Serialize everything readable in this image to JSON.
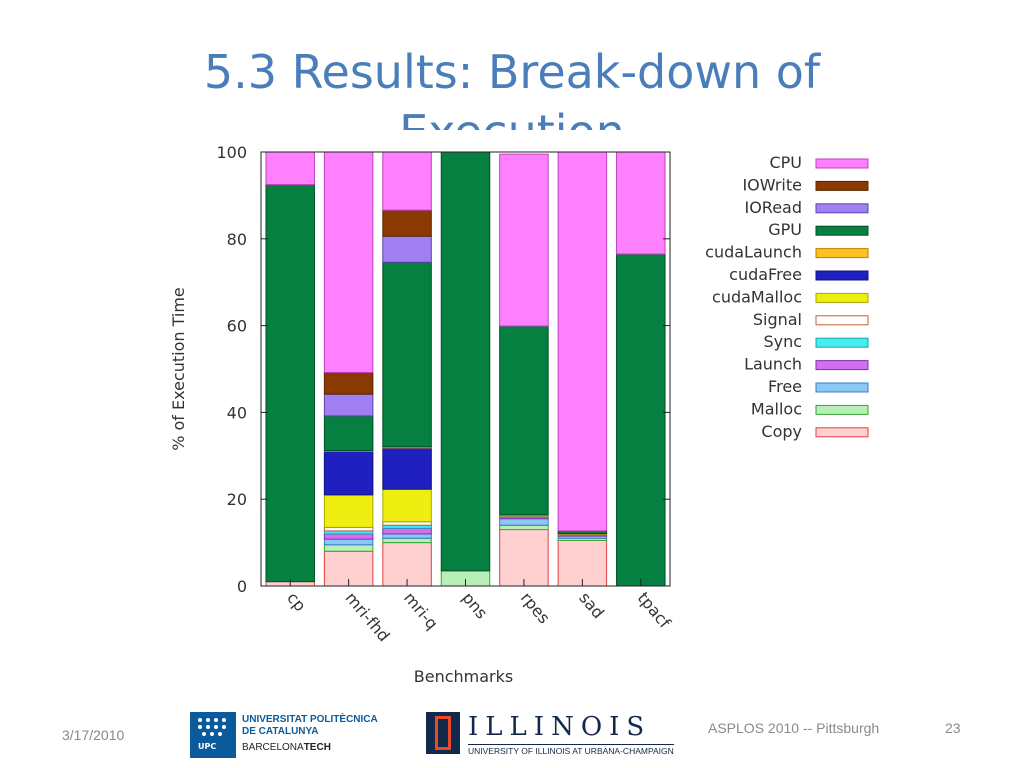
{
  "slide": {
    "title_line1": "5.3 Results: Break-down of",
    "title_line2": "Execution",
    "date": "3/17/2010",
    "conference": "ASPLOS 2010 -- Pittsburgh",
    "page_number": "23"
  },
  "logos": {
    "upc_line1": "UNIVERSITAT POLITÈCNICA",
    "upc_line2": "DE CATALUNYA",
    "upc_line3_a": "BARCELONA",
    "upc_line3_b": "TECH",
    "upc_mark": "UPC",
    "illinois_word": "ILLINOIS",
    "illinois_sub": "UNIVERSITY OF ILLINOIS AT URBANA-CHAMPAIGN"
  },
  "chart_data": {
    "type": "bar",
    "stacked": true,
    "xlabel": "Benchmarks",
    "ylabel": "% of Execution Time",
    "ylim": [
      0,
      100
    ],
    "yticks": [
      0,
      20,
      40,
      60,
      80,
      100
    ],
    "grid": false,
    "legend_position": "right",
    "categories": [
      "cp",
      "mri-fhd",
      "mri-q",
      "pns",
      "rpes",
      "sad",
      "tpacf"
    ],
    "series": [
      {
        "name": "Copy",
        "color": "#ffd0d0",
        "edge": "#e04040",
        "values": [
          1,
          8,
          10,
          0,
          13,
          10.5,
          0
        ]
      },
      {
        "name": "Malloc",
        "color": "#b8efb8",
        "edge": "#33aa33",
        "values": [
          0,
          1.5,
          1,
          3.5,
          1,
          0.5,
          0
        ]
      },
      {
        "name": "Free",
        "color": "#8cc8f4",
        "edge": "#3a7cc8",
        "values": [
          0,
          1.3,
          1,
          0,
          1.5,
          0.5,
          0
        ]
      },
      {
        "name": "Launch",
        "color": "#d070f0",
        "edge": "#8030b0",
        "values": [
          0,
          1.2,
          1.3,
          0,
          0.3,
          0.2,
          0
        ]
      },
      {
        "name": "Sync",
        "color": "#44eef0",
        "edge": "#20a0b0",
        "values": [
          0,
          0.7,
          0.7,
          0,
          0.3,
          0.2,
          0
        ]
      },
      {
        "name": "Signal",
        "color": "#ffffff",
        "edge": "#c06030",
        "values": [
          0,
          0.8,
          0.8,
          0,
          0,
          0,
          0
        ]
      },
      {
        "name": "cudaMalloc",
        "color": "#eeee10",
        "edge": "#a8a800",
        "values": [
          0,
          7.5,
          7.5,
          0,
          0,
          0,
          0
        ]
      },
      {
        "name": "cudaFree",
        "color": "#2020c0",
        "edge": "#101080",
        "values": [
          0,
          10,
          9.5,
          0,
          0,
          0,
          0
        ]
      },
      {
        "name": "cudaLaunch",
        "color": "#ffc020",
        "edge": "#c08000",
        "values": [
          0,
          0.2,
          0.3,
          0,
          0.3,
          0.2,
          0
        ]
      },
      {
        "name": "GPU",
        "color": "#058040",
        "edge": "#035025",
        "values": [
          91.5,
          8,
          42.5,
          96.5,
          43.5,
          0.6,
          76.5
        ]
      },
      {
        "name": "IORead",
        "color": "#a080f0",
        "edge": "#6040b0",
        "values": [
          0,
          5,
          6,
          0,
          0,
          0,
          0
        ]
      },
      {
        "name": "IOWrite",
        "color": "#8a3a00",
        "edge": "#5a2500",
        "values": [
          0,
          5,
          6,
          0,
          0,
          0,
          0
        ]
      },
      {
        "name": "CPU",
        "color": "#ff80ff",
        "edge": "#c040c0",
        "values": [
          7.5,
          50.8,
          13.4,
          0,
          39.6,
          87.3,
          23.5
        ]
      }
    ]
  }
}
